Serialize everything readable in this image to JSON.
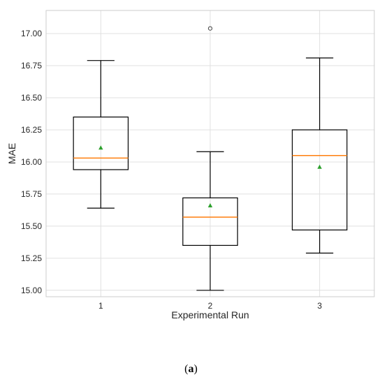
{
  "chart_data": {
    "type": "box",
    "xlabel": "Experimental Run",
    "ylabel": "MAE",
    "ylim": [
      14.95,
      17.18
    ],
    "yticks": [
      15.0,
      15.25,
      15.5,
      15.75,
      16.0,
      16.25,
      16.5,
      16.75,
      17.0
    ],
    "ytick_labels": [
      "15.00",
      "15.25",
      "15.50",
      "15.75",
      "16.00",
      "16.25",
      "16.50",
      "16.75",
      "17.00"
    ],
    "categories": [
      "1",
      "2",
      "3"
    ],
    "grid": true,
    "boxes": [
      {
        "whisker_low": 15.64,
        "q1": 15.94,
        "median": 16.03,
        "q3": 16.35,
        "whisker_high": 16.79,
        "mean": 16.11,
        "outliers": []
      },
      {
        "whisker_low": 15.0,
        "q1": 15.35,
        "median": 15.57,
        "q3": 15.72,
        "whisker_high": 16.08,
        "mean": 15.66,
        "outliers": [
          17.04
        ]
      },
      {
        "whisker_low": 15.29,
        "q1": 15.47,
        "median": 16.05,
        "q3": 16.25,
        "whisker_high": 16.81,
        "mean": 15.96,
        "outliers": []
      }
    ],
    "colors": {
      "median": "#ff7f0e",
      "mean_marker": "#2ca02c",
      "box_edge": "#000000",
      "grid": "#e0e0e0",
      "frame": "#cccccc"
    }
  },
  "caption": {
    "open": "(",
    "label": "a",
    "close": ")"
  }
}
